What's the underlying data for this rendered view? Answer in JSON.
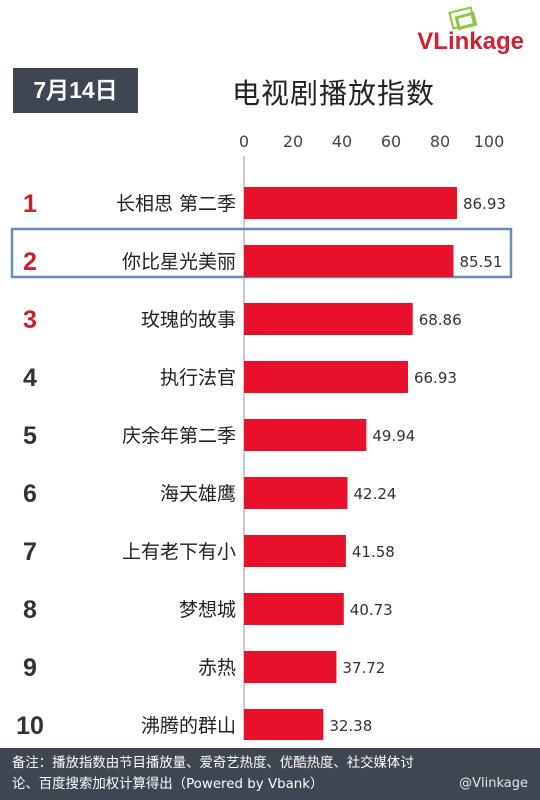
{
  "header": {
    "date": "7月14日",
    "title": "电视剧播放指数",
    "brand": "VLinkage"
  },
  "chart_data": {
    "type": "bar",
    "title": "电视剧播放指数",
    "ranks": [
      "1",
      "2",
      "3",
      "4",
      "5",
      "6",
      "7",
      "8",
      "9",
      "10"
    ],
    "categories": [
      "长相思 第二季",
      "你比星光美丽",
      "玫瑰的故事",
      "执行法官",
      "庆余年第二季",
      "海天雄鹰",
      "上有老下有小",
      "梦想城",
      "赤热",
      "沸腾的群山"
    ],
    "values": [
      86.93,
      85.51,
      68.86,
      66.93,
      49.94,
      42.24,
      41.58,
      40.73,
      37.72,
      32.38
    ],
    "value_labels": [
      "86.93",
      "85.51",
      "68.86",
      "66.93",
      "49.94",
      "42.24",
      "41.58",
      "40.73",
      "37.72",
      "32.38"
    ],
    "x_ticks": [
      "0",
      "20",
      "40",
      "60",
      "80",
      "100"
    ],
    "xlim": [
      0,
      100
    ],
    "highlighted_index": 1,
    "red_rank_count": 3,
    "colors": {
      "bar": "#e8102a",
      "rank_top": "#c8202d",
      "rank_other": "#333333",
      "highlight": "#6a8bb5"
    }
  },
  "footer": {
    "note_line1": "备注：播放指数由节目播放量、爱奇艺热度、优酷热度、社交媒体讨",
    "note_line2": "论、百度搜索加权计算得出（Powered by Vbank）",
    "watermark": "@Vlinkage"
  }
}
